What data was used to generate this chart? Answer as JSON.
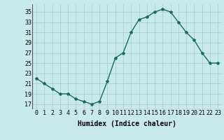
{
  "x": [
    0,
    1,
    2,
    3,
    4,
    5,
    6,
    7,
    8,
    9,
    10,
    11,
    12,
    13,
    14,
    15,
    16,
    17,
    18,
    19,
    20,
    21,
    22,
    23
  ],
  "y": [
    22,
    21,
    20,
    19,
    19,
    18,
    17.5,
    17,
    17.5,
    21.5,
    26,
    27,
    31,
    33.5,
    34,
    35,
    35.5,
    35,
    33,
    31,
    29.5,
    27,
    25,
    25
  ],
  "xlabel": "Humidex (Indice chaleur)",
  "xlim": [
    -0.5,
    23.5
  ],
  "ylim": [
    16,
    36.5
  ],
  "yticks": [
    17,
    19,
    21,
    23,
    25,
    27,
    29,
    31,
    33,
    35
  ],
  "xticks": [
    0,
    1,
    2,
    3,
    4,
    5,
    6,
    7,
    8,
    9,
    10,
    11,
    12,
    13,
    14,
    15,
    16,
    17,
    18,
    19,
    20,
    21,
    22,
    23
  ],
  "line_color": "#1a6b5a",
  "marker": "*",
  "bg_color": "#c8eaea",
  "grid_color": "#aed4d4",
  "label_fontsize": 7,
  "tick_fontsize": 6
}
